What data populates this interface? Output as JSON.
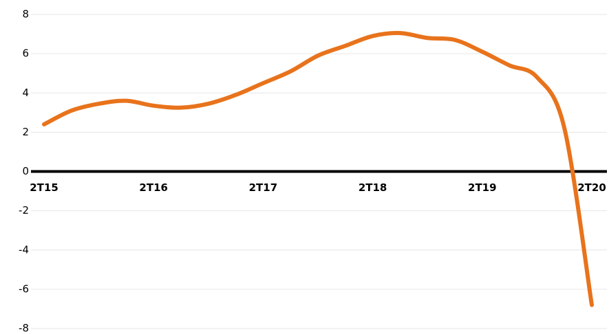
{
  "chart_data": {
    "type": "line",
    "categories": [
      "2T15",
      null,
      null,
      null,
      "2T16",
      null,
      null,
      null,
      "2T17",
      null,
      null,
      null,
      "2T18",
      null,
      null,
      null,
      "2T19",
      null,
      null,
      null,
      "2T20"
    ],
    "series": [
      {
        "color": "#e8731c",
        "values": [
          2.4,
          3.1,
          3.45,
          3.6,
          3.35,
          3.25,
          3.45,
          3.9,
          4.5,
          5.1,
          5.9,
          6.4,
          6.9,
          7.05,
          6.8,
          6.7,
          6.1,
          5.4,
          4.8,
          2.2,
          -6.8
        ]
      }
    ],
    "ylim": [
      -8,
      8
    ],
    "yticks": [
      -8,
      -6,
      -4,
      -2,
      0,
      2,
      4,
      6,
      8
    ],
    "grid": true
  }
}
